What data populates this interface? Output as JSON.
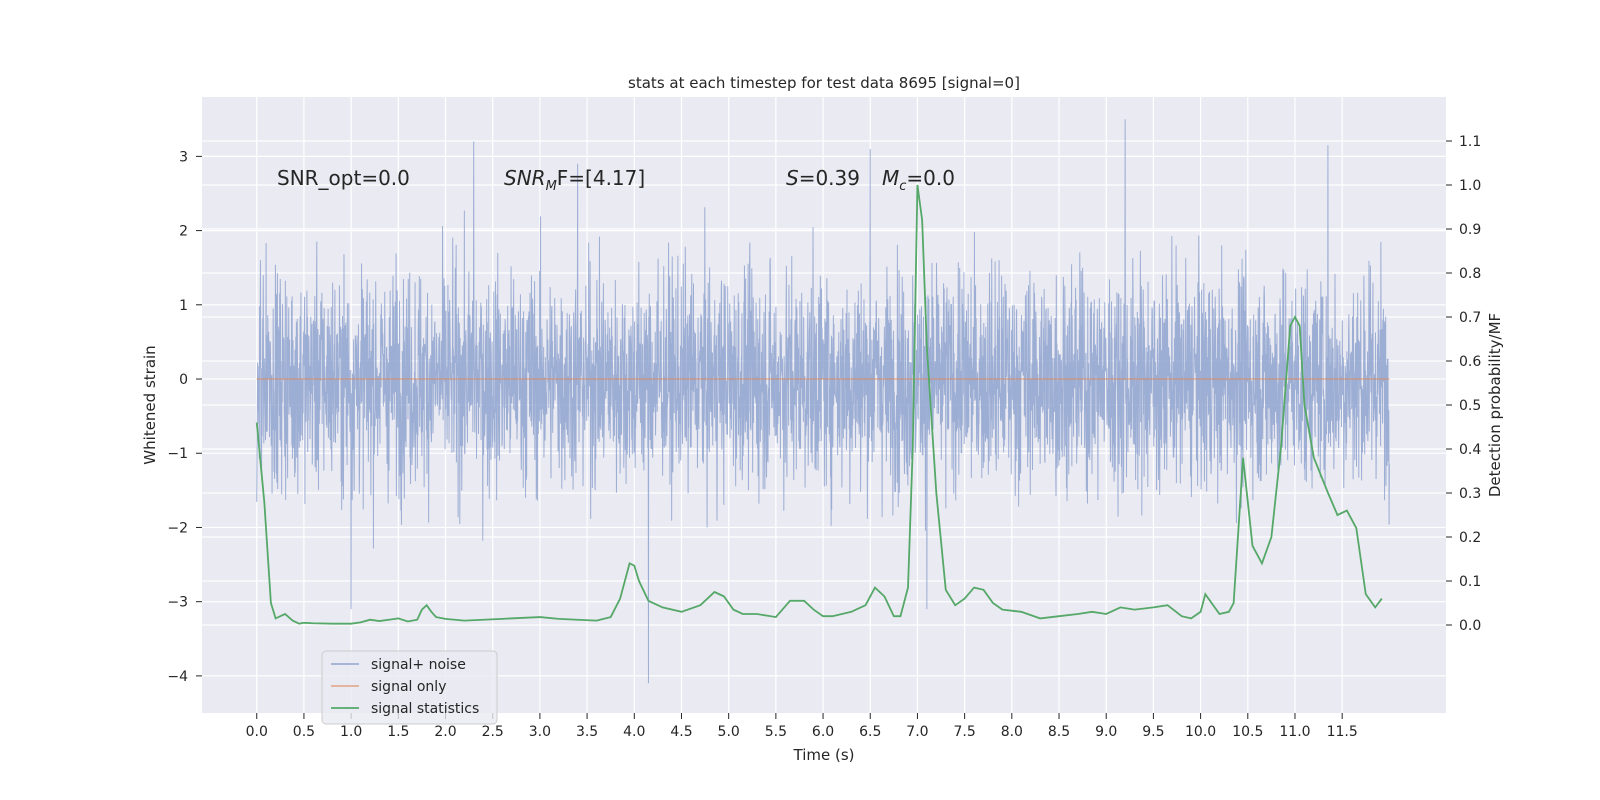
{
  "chart_data": {
    "type": "line",
    "title": "stats at each timestep for test data 8695 [signal=0]",
    "xlabel": "Time (s)",
    "ylabel": "Whitened strain",
    "y2label": "Detection probability/MF",
    "xlim": [
      -0.58,
      12.6
    ],
    "ylim": [
      -4.5,
      3.8
    ],
    "y2lim": [
      -0.2,
      1.2
    ],
    "x_ticks": [
      "0.0",
      "0.5",
      "1.0",
      "1.5",
      "2.0",
      "2.5",
      "3.0",
      "3.5",
      "4.0",
      "4.5",
      "5.0",
      "5.5",
      "6.0",
      "6.5",
      "7.0",
      "7.5",
      "8.0",
      "8.5",
      "9.0",
      "9.5",
      "10.0",
      "10.5",
      "11.0",
      "11.5"
    ],
    "y_ticks": [
      "3",
      "2",
      "1",
      "0",
      "−1",
      "−2",
      "−3",
      "−4"
    ],
    "y2_ticks": [
      "1.1",
      "1.0",
      "0.9",
      "0.8",
      "0.7",
      "0.6",
      "0.5",
      "0.4",
      "0.3",
      "0.2",
      "0.1",
      "0.0"
    ],
    "grid": true,
    "legend_position": "lower left",
    "annotations": {
      "snr_opt": "SNR_opt=0.0",
      "snr_mf_base": "SNR",
      "snr_mf_sub": "M",
      "snr_mf_rest": "F=[4.17]",
      "s_italic": "S",
      "s_rest": "=0.39",
      "mc_base": "M",
      "mc_sub": "c",
      "mc_rest": "=0.0"
    },
    "series": [
      {
        "name": "signal+ noise",
        "color": "#8fa3cf",
        "description_of_shape": "dense noise approximately between -2 and 2",
        "x_range": [
          0.0,
          12.0
        ],
        "envelope": {
          "typical_min": -1.6,
          "typical_max": 1.5,
          "extreme_min": -4.1,
          "extreme_max": 3.5
        },
        "notable_peaks": [
          [
            2.3,
            3.2
          ],
          [
            3.4,
            2.9
          ],
          [
            4.15,
            -4.1
          ],
          [
            6.5,
            3.1
          ],
          [
            9.2,
            3.5
          ],
          [
            11.35,
            3.15
          ],
          [
            1.0,
            -3.1
          ],
          [
            7.1,
            -3.1
          ]
        ]
      },
      {
        "name": "signal only",
        "color": "#dd8452",
        "x": [
          0.0,
          12.0
        ],
        "values": [
          0.0,
          0.0
        ]
      },
      {
        "name": "signal statistics",
        "color": "#55a868",
        "axis": "right",
        "x": [
          0.0,
          0.08,
          0.15,
          0.2,
          0.25,
          0.3,
          0.38,
          0.45,
          0.5,
          0.6,
          0.8,
          1.0,
          1.1,
          1.2,
          1.3,
          1.4,
          1.5,
          1.6,
          1.7,
          1.75,
          1.8,
          1.85,
          1.9,
          2.0,
          2.2,
          2.4,
          2.6,
          2.8,
          3.0,
          3.2,
          3.4,
          3.6,
          3.75,
          3.85,
          3.95,
          4.0,
          4.05,
          4.15,
          4.3,
          4.5,
          4.7,
          4.85,
          4.95,
          5.05,
          5.15,
          5.3,
          5.5,
          5.65,
          5.8,
          5.9,
          6.0,
          6.1,
          6.3,
          6.45,
          6.55,
          6.65,
          6.75,
          6.82,
          6.9,
          6.95,
          7.0,
          7.05,
          7.1,
          7.2,
          7.3,
          7.4,
          7.5,
          7.6,
          7.7,
          7.8,
          7.9,
          8.1,
          8.3,
          8.5,
          8.7,
          8.85,
          9.0,
          9.15,
          9.3,
          9.5,
          9.65,
          9.8,
          9.9,
          10.0,
          10.05,
          10.2,
          10.3,
          10.35,
          10.45,
          10.55,
          10.65,
          10.75,
          10.85,
          10.95,
          11.0,
          11.05,
          11.1,
          11.2,
          11.35,
          11.45,
          11.55,
          11.65,
          11.75,
          11.85,
          11.92
        ],
        "values": [
          0.46,
          0.28,
          0.05,
          0.015,
          0.02,
          0.025,
          0.01,
          0.003,
          0.005,
          0.004,
          0.003,
          0.003,
          0.006,
          0.012,
          0.009,
          0.012,
          0.015,
          0.008,
          0.012,
          0.035,
          0.045,
          0.03,
          0.018,
          0.014,
          0.01,
          0.012,
          0.014,
          0.016,
          0.018,
          0.014,
          0.012,
          0.01,
          0.018,
          0.06,
          0.14,
          0.135,
          0.1,
          0.055,
          0.04,
          0.03,
          0.045,
          0.075,
          0.065,
          0.035,
          0.025,
          0.025,
          0.018,
          0.055,
          0.055,
          0.035,
          0.02,
          0.02,
          0.03,
          0.045,
          0.085,
          0.065,
          0.02,
          0.02,
          0.085,
          0.4,
          1.0,
          0.92,
          0.63,
          0.3,
          0.08,
          0.045,
          0.06,
          0.085,
          0.08,
          0.05,
          0.035,
          0.03,
          0.015,
          0.02,
          0.025,
          0.03,
          0.025,
          0.04,
          0.035,
          0.04,
          0.045,
          0.02,
          0.015,
          0.03,
          0.07,
          0.025,
          0.03,
          0.05,
          0.38,
          0.18,
          0.14,
          0.2,
          0.4,
          0.68,
          0.7,
          0.68,
          0.5,
          0.38,
          0.3,
          0.25,
          0.26,
          0.22,
          0.07,
          0.04,
          0.06
        ]
      }
    ]
  }
}
